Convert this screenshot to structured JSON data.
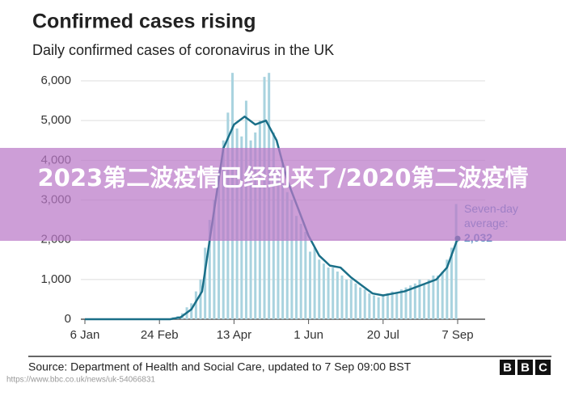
{
  "chart_data": {
    "type": "combo",
    "title": "Confirmed cases rising",
    "subtitle": "Daily confirmed cases of coronavirus in the UK",
    "xlim": [
      0,
      245
    ],
    "xticks": [
      {
        "value": 0,
        "label": "6 Jan"
      },
      {
        "value": 49,
        "label": "24 Feb"
      },
      {
        "value": 98,
        "label": "13 Apr"
      },
      {
        "value": 147,
        "label": "1 Jun"
      },
      {
        "value": 196,
        "label": "20 Jul"
      },
      {
        "value": 245,
        "label": "7 Sep"
      }
    ],
    "ylim": [
      0,
      6000
    ],
    "yticks": [
      0,
      {
        "value": 1000,
        "label": "1,000"
      },
      {
        "value": 2000,
        "label": "2,000"
      },
      {
        "value": 3000,
        "label": "3,000"
      },
      {
        "value": 4000,
        "label": "4,000"
      },
      {
        "value": 5000,
        "label": "5,000"
      },
      {
        "value": 6000,
        "label": "6,000"
      }
    ],
    "grid": true,
    "series": [
      {
        "type": "bar",
        "color": "#a9d3df",
        "x": [
          52,
          55,
          58,
          61,
          64,
          67,
          70,
          73,
          76,
          79,
          82,
          85,
          88,
          91,
          94,
          97,
          100,
          103,
          106,
          109,
          112,
          115,
          118,
          121,
          124,
          127,
          130,
          133,
          136,
          139,
          142,
          145,
          148,
          151,
          154,
          157,
          160,
          163,
          166,
          169,
          172,
          175,
          178,
          181,
          184,
          187,
          190,
          193,
          196,
          199,
          202,
          205,
          208,
          211,
          214,
          217,
          220,
          223,
          226,
          229,
          232,
          235,
          238,
          241,
          244
        ],
        "values": [
          10,
          20,
          50,
          80,
          150,
          300,
          400,
          700,
          1000,
          1800,
          2500,
          3000,
          3700,
          4500,
          5200,
          6200,
          4800,
          4600,
          5500,
          4500,
          4700,
          5000,
          6100,
          6200,
          4700,
          3800,
          3900,
          3200,
          3000,
          2600,
          2400,
          2200,
          1700,
          1800,
          1500,
          1400,
          1300,
          1300,
          1200,
          1100,
          1000,
          1000,
          900,
          800,
          750,
          650,
          600,
          550,
          600,
          650,
          700,
          650,
          750,
          800,
          850,
          900,
          1000,
          900,
          1000,
          1100,
          1100,
          1200,
          1500,
          1800,
          2900
        ]
      },
      {
        "type": "line",
        "color": "#1a6f88",
        "x": [
          0,
          7,
          14,
          21,
          28,
          35,
          42,
          49,
          56,
          63,
          70,
          77,
          84,
          91,
          98,
          105,
          112,
          119,
          126,
          133,
          140,
          147,
          154,
          161,
          168,
          175,
          182,
          189,
          196,
          203,
          210,
          217,
          224,
          231,
          238,
          245
        ],
        "values": [
          0,
          0,
          0,
          0,
          0,
          0,
          0,
          0,
          0,
          50,
          250,
          700,
          2500,
          4300,
          4900,
          5100,
          4900,
          5000,
          4500,
          3500,
          2800,
          2100,
          1600,
          1350,
          1300,
          1050,
          850,
          650,
          600,
          650,
          700,
          800,
          900,
          1000,
          1300,
          2032
        ],
        "value_labels": [
          null,
          null,
          null,
          null,
          null,
          null,
          null,
          null,
          null,
          null,
          null,
          null,
          null,
          null,
          null,
          null,
          null,
          null,
          null,
          null,
          null,
          null,
          null,
          null,
          null,
          null,
          null,
          null,
          null,
          null,
          null,
          null,
          null,
          null,
          null,
          "2,032"
        ]
      }
    ],
    "annotation": [
      "Seven-day",
      "average:"
    ],
    "source": "Source: Department of Health and Social Care, updated to 7 Sep 09:00 BST",
    "logo": [
      "B",
      "B",
      "C"
    ],
    "url": "https://www.bbc.co.uk/news/uk-54066831",
    "banner": "2023第二波疫情已经到来了/2020第二波疫情"
  }
}
